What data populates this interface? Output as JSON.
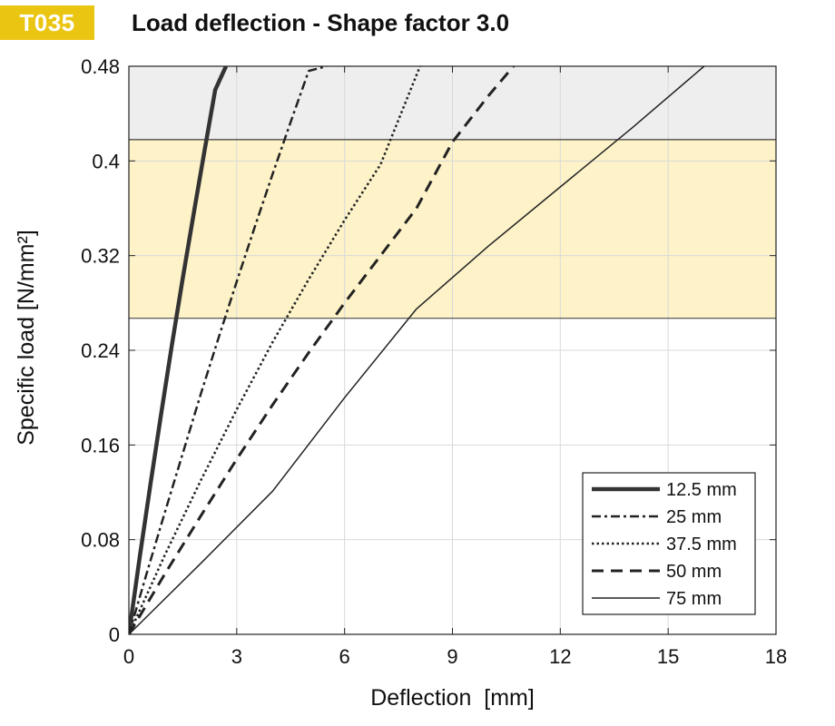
{
  "header": {
    "code": "T035",
    "title": "Load deflection - Shape factor 3.0"
  },
  "colors": {
    "badge": "#eac512",
    "band_yellow": "#fdf2c8",
    "band_gray": "#eeeeee",
    "grid": "#d9d9d9",
    "line": "#222222"
  },
  "chart_data": {
    "type": "line",
    "title": "Load deflection - Shape factor 3.0",
    "xlabel": "Deflection  [mm]",
    "ylabel": "Specific load [N/mm²]",
    "xlim": [
      0,
      18
    ],
    "ylim": [
      0,
      0.48
    ],
    "xticks": [
      0,
      3,
      6,
      9,
      12,
      15,
      18
    ],
    "xtick_labels": [
      "0",
      "3",
      "6",
      "9",
      "12",
      "15",
      "18"
    ],
    "yticks": [
      0,
      0.08,
      0.16,
      0.24,
      0.32,
      0.4,
      0.48
    ],
    "ytick_labels": [
      "0",
      "0.08",
      "0.16",
      "0.24",
      "0.32",
      "0.4",
      "0.48"
    ],
    "grid": true,
    "bands": [
      {
        "name": "recommended-range",
        "y0": 0.267,
        "y1": 0.418,
        "color": "#fdf2c8"
      },
      {
        "name": "overload-range",
        "y0": 0.418,
        "y1": 0.48,
        "color": "#eeeeee"
      }
    ],
    "legend_position": "bottom-right",
    "series": [
      {
        "name": "12.5 mm",
        "style": "solid-thick",
        "x": [
          0,
          0.3,
          0.6,
          0.9,
          1.2,
          1.5,
          1.8,
          2.1,
          2.4,
          2.7
        ],
        "y": [
          0,
          0.065,
          0.127,
          0.187,
          0.245,
          0.301,
          0.355,
          0.408,
          0.46,
          0.48
        ]
      },
      {
        "name": "25 mm",
        "style": "dash-dot",
        "x": [
          0,
          0.5,
          1.0,
          1.5,
          2.0,
          2.5,
          3.0,
          3.5,
          4.0,
          4.5,
          5.0,
          5.5
        ],
        "y": [
          0,
          0.052,
          0.103,
          0.153,
          0.203,
          0.251,
          0.298,
          0.344,
          0.389,
          0.433,
          0.476,
          0.48
        ]
      },
      {
        "name": "37.5 mm",
        "style": "dotted",
        "x": [
          0,
          1,
          2,
          3,
          4,
          5,
          6,
          7,
          8.1
        ],
        "y": [
          0,
          0.067,
          0.13,
          0.19,
          0.247,
          0.3,
          0.35,
          0.397,
          0.48
        ]
      },
      {
        "name": "50 mm",
        "style": "dashed",
        "x": [
          0,
          1,
          2,
          3,
          4,
          5,
          6,
          7,
          8,
          9,
          10,
          10.7
        ],
        "y": [
          0,
          0.051,
          0.1,
          0.148,
          0.194,
          0.238,
          0.28,
          0.32,
          0.36,
          0.416,
          0.455,
          0.48
        ]
      },
      {
        "name": "75 mm",
        "style": "solid-thin",
        "x": [
          0,
          2,
          4,
          6,
          8,
          10,
          12,
          14,
          16
        ],
        "y": [
          0,
          0.06,
          0.121,
          0.2,
          0.275,
          0.328,
          0.378,
          0.428,
          0.48
        ]
      }
    ]
  }
}
